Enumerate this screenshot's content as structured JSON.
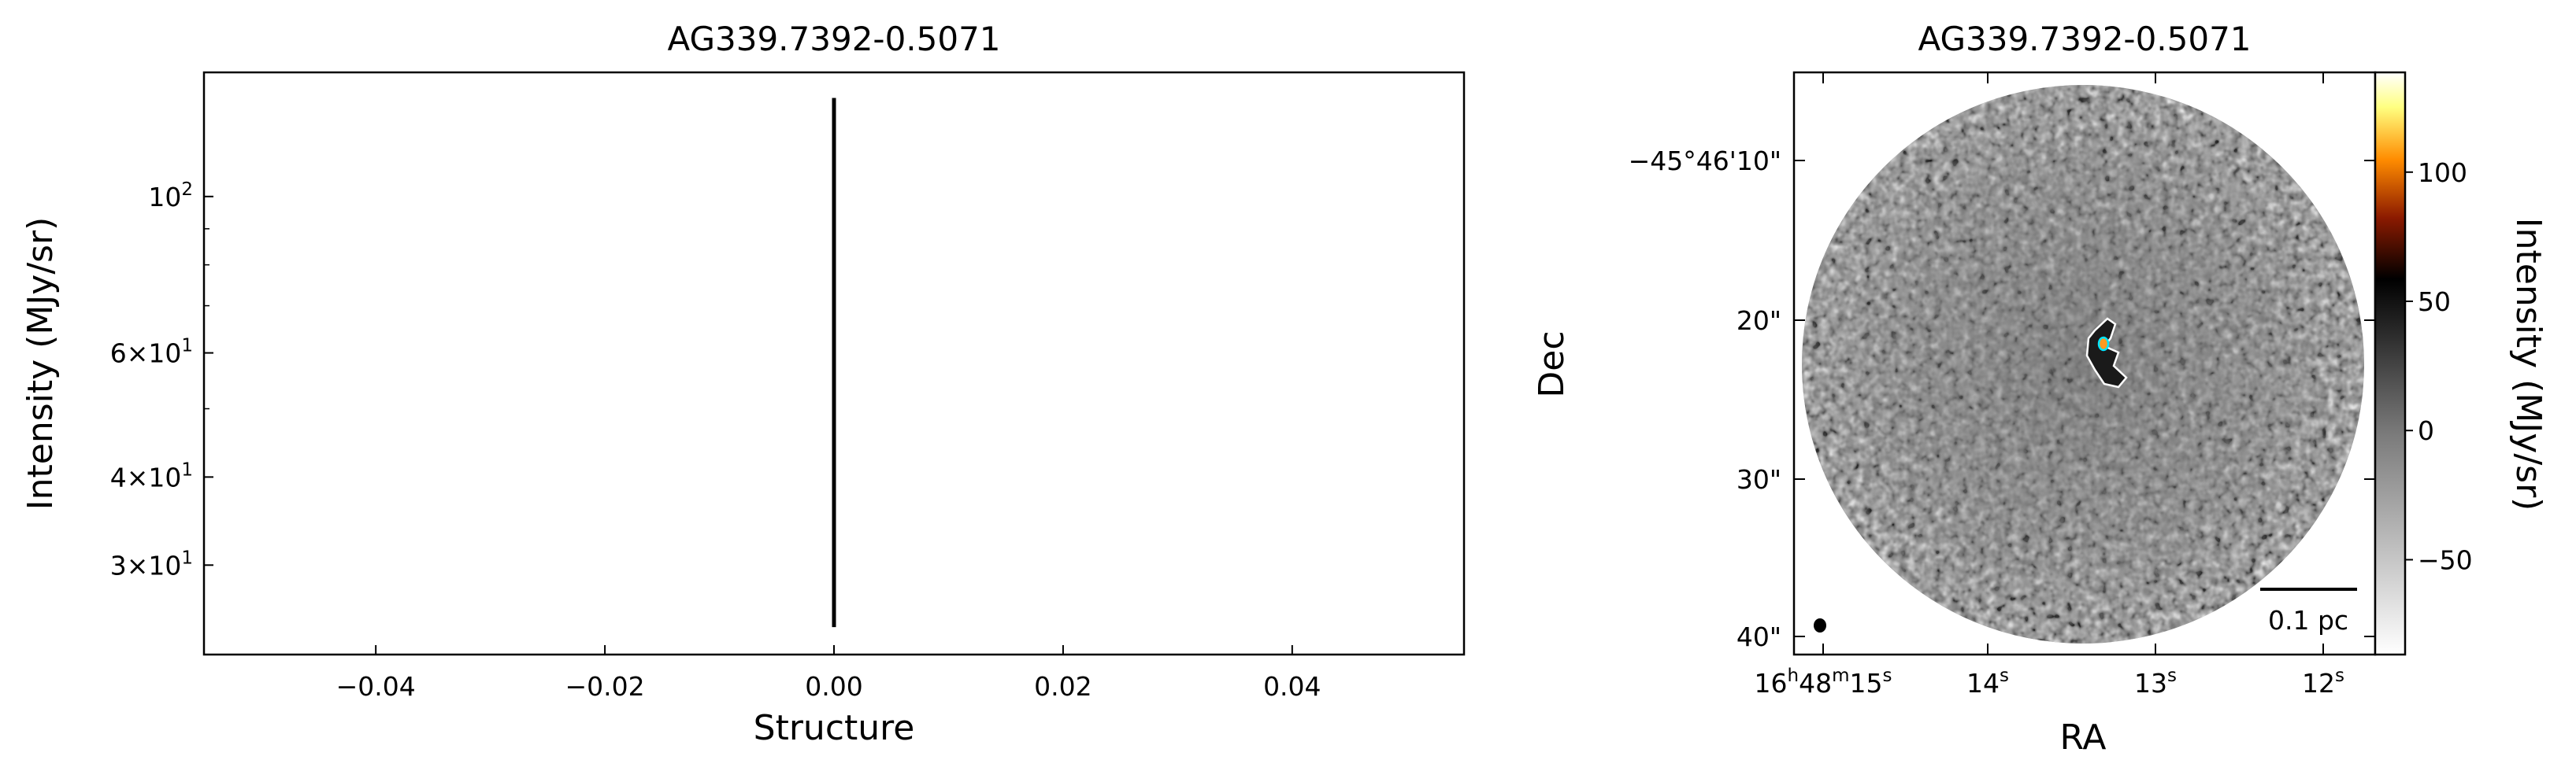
{
  "chart_data": [
    {
      "type": "line",
      "title": "AG339.7392-0.5071",
      "xlabel": "Structure",
      "ylabel": "Intensity (MJy/sr)",
      "xlim": [
        -0.055,
        0.055
      ],
      "ylim": [
        22.4,
        150
      ],
      "yscale": "log",
      "x_ticks": [
        -0.04,
        -0.02,
        0.0,
        0.02,
        0.04
      ],
      "x_tick_labels": [
        "−0.04",
        "−0.02",
        "0.00",
        "0.02",
        "0.04"
      ],
      "y_ticks": [
        100,
        60,
        40,
        30
      ],
      "y_tick_labels": [
        "10^2",
        "6×10^1",
        "4×10^1",
        "3×10^1"
      ],
      "grid": false,
      "series": [
        {
          "segments": [
            {
              "x": 0.0,
              "y_min": 24.5,
              "y_max": 138
            }
          ],
          "color": "#000000"
        }
      ]
    },
    {
      "type": "heatmap",
      "title": "AG339.7392-0.5071",
      "xlabel": "RA",
      "ylabel": "Dec",
      "x_tick_labels": [
        {
          "main": "16",
          "sup1": "h",
          "mid": "48",
          "sup2": "m",
          "end": "15",
          "sup3": "s"
        },
        {
          "main": "14",
          "sup3": "s"
        },
        {
          "main": "13",
          "sup3": "s"
        },
        {
          "main": "12",
          "sup3": "s"
        }
      ],
      "y_tick_labels": [
        "−45°46'10\"",
        "20\"",
        "30\"",
        "40\""
      ],
      "colorbar": {
        "label": "Intensity (MJy/sr)",
        "range": [
          -86.7,
          138.6
        ],
        "ticks": [
          100,
          50,
          0,
          -50
        ],
        "tick_labels": [
          "100",
          "50",
          "0",
          "−50"
        ],
        "colors": [
          "#ffffff",
          "#808080",
          "#000000",
          "#8b1a00",
          "#ff8c00",
          "#ffff80",
          "#ffffff"
        ]
      },
      "scalebar_label": "0.1 pc",
      "contour_colors": [
        "#ffffff",
        "#00e5ff"
      ]
    }
  ]
}
